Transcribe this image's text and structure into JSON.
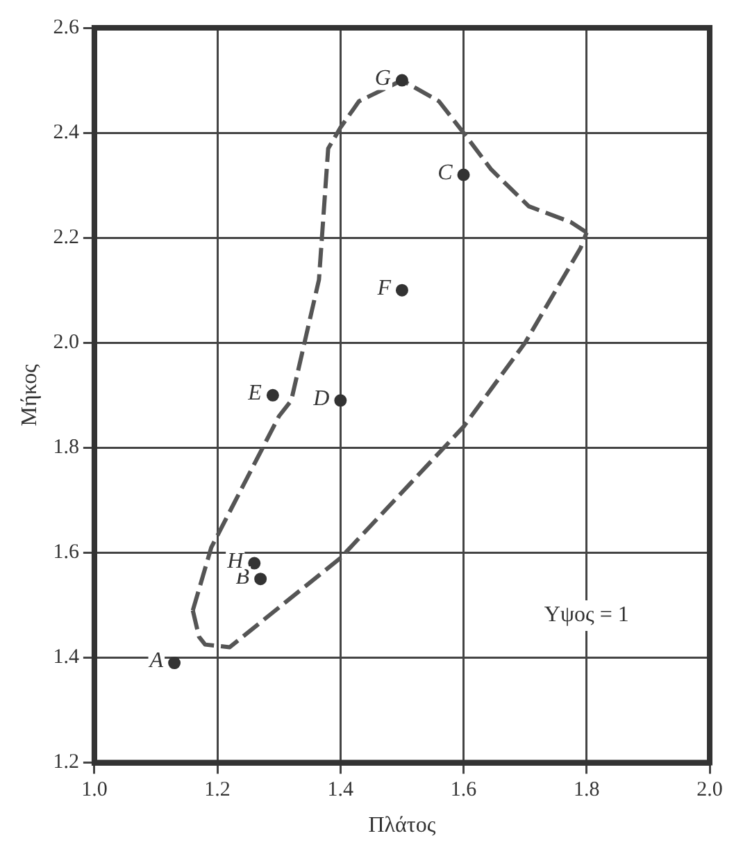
{
  "chart_data": {
    "type": "scatter",
    "xlabel": "Πλάτος",
    "ylabel": "Μήκος",
    "xlim": [
      1.0,
      2.0
    ],
    "xticks": [
      {
        "value": 1.0,
        "label": "1.0"
      },
      1.2,
      1.4,
      1.6,
      1.8,
      {
        "value": 2.0,
        "label": "2.0"
      }
    ],
    "ylim": [
      1.2,
      2.6
    ],
    "yticks": [
      1.2,
      1.4,
      1.6,
      1.8,
      {
        "value": 2.0,
        "label": "2.0"
      },
      2.2,
      2.4,
      2.6
    ],
    "grid": true,
    "legend": false,
    "series": [
      {
        "color": "#333333",
        "marker": "circle",
        "x": [
          1.13,
          1.27,
          1.6,
          1.4,
          1.29,
          1.5,
          1.5,
          1.26
        ],
        "values": [
          1.39,
          1.55,
          2.32,
          1.89,
          1.9,
          2.1,
          2.5,
          1.58
        ]
      },
      {
        "type": "line",
        "color": "#555555",
        "marker": "none",
        "line_style": "dashed",
        "x": [
          1.16,
          1.19,
          1.3,
          1.32,
          1.365,
          1.38,
          1.4,
          1.43,
          1.5,
          1.56,
          1.6,
          1.645,
          1.706,
          1.774,
          1.8
        ],
        "values": [
          1.49,
          1.61,
          1.86,
          1.89,
          2.12,
          2.37,
          2.41,
          2.46,
          2.5,
          2.46,
          2.4,
          2.33,
          2.26,
          2.23,
          2.21
        ]
      },
      {
        "type": "line",
        "color": "#555555",
        "marker": "none",
        "line_style": "dashed",
        "x": [
          1.16,
          1.17,
          1.18,
          1.22,
          1.4,
          1.6,
          1.7,
          1.79,
          1.8
        ],
        "values": [
          1.49,
          1.44,
          1.425,
          1.42,
          1.59,
          1.84,
          2.0,
          2.18,
          2.21
        ]
      }
    ],
    "annotations": [
      {
        "text": "A",
        "x": 1.13,
        "y": 1.39
      },
      {
        "text": "B",
        "x": 1.27,
        "y": 1.55
      },
      {
        "text": "C",
        "x": 1.6,
        "y": 2.32
      },
      {
        "text": "D",
        "x": 1.4,
        "y": 1.89
      },
      {
        "text": "E",
        "x": 1.29,
        "y": 1.9
      },
      {
        "text": "F",
        "x": 1.5,
        "y": 2.1
      },
      {
        "text": "G",
        "x": 1.5,
        "y": 2.5
      },
      {
        "text": "H",
        "x": 1.26,
        "y": 1.58
      },
      "Yψος = 1"
    ]
  }
}
